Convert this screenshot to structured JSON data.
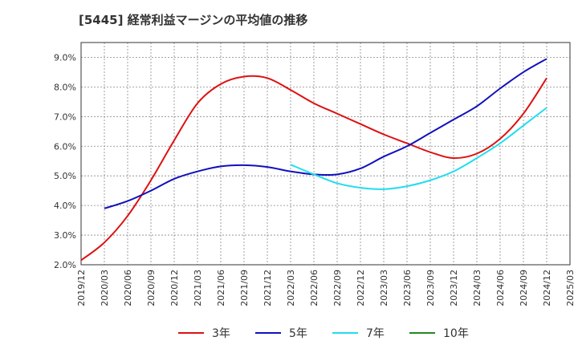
{
  "chart_data": {
    "type": "line",
    "title": "[5445]  経常利益マージンの平均値の推移",
    "xlabel": "",
    "ylabel": "",
    "x_ticks": [
      "2019/12",
      "2020/03",
      "2020/06",
      "2020/09",
      "2020/12",
      "2021/03",
      "2021/06",
      "2021/09",
      "2021/12",
      "2022/03",
      "2022/06",
      "2022/09",
      "2022/12",
      "2023/03",
      "2023/06",
      "2023/09",
      "2023/12",
      "2024/03",
      "2024/06",
      "2024/09",
      "2024/12",
      "2025/03"
    ],
    "y_ticks": [
      "2.0%",
      "3.0%",
      "4.0%",
      "5.0%",
      "6.0%",
      "7.0%",
      "8.0%",
      "9.0%"
    ],
    "ylim": [
      2.0,
      9.5
    ],
    "grid": true,
    "legend_position": "bottom",
    "series": [
      {
        "name": "3年",
        "color": "#dd1111",
        "points": [
          [
            "2019/12",
            2.15
          ],
          [
            "2020/03",
            2.75
          ],
          [
            "2020/06",
            3.65
          ],
          [
            "2020/09",
            4.85
          ],
          [
            "2020/12",
            6.2
          ],
          [
            "2021/03",
            7.45
          ],
          [
            "2021/06",
            8.1
          ],
          [
            "2021/09",
            8.35
          ],
          [
            "2021/12",
            8.3
          ],
          [
            "2022/03",
            7.9
          ],
          [
            "2022/06",
            7.45
          ],
          [
            "2022/09",
            7.1
          ],
          [
            "2022/12",
            6.75
          ],
          [
            "2023/03",
            6.4
          ],
          [
            "2023/06",
            6.1
          ],
          [
            "2023/09",
            5.8
          ],
          [
            "2023/12",
            5.6
          ],
          [
            "2024/03",
            5.75
          ],
          [
            "2024/06",
            6.25
          ],
          [
            "2024/09",
            7.1
          ],
          [
            "2024/12",
            8.3
          ]
        ]
      },
      {
        "name": "5年",
        "color": "#1111bb",
        "points": [
          [
            "2020/03",
            3.9
          ],
          [
            "2020/06",
            4.15
          ],
          [
            "2020/09",
            4.5
          ],
          [
            "2020/12",
            4.9
          ],
          [
            "2021/03",
            5.15
          ],
          [
            "2021/06",
            5.32
          ],
          [
            "2021/09",
            5.36
          ],
          [
            "2021/12",
            5.3
          ],
          [
            "2022/03",
            5.15
          ],
          [
            "2022/06",
            5.05
          ],
          [
            "2022/09",
            5.05
          ],
          [
            "2022/12",
            5.25
          ],
          [
            "2023/03",
            5.65
          ],
          [
            "2023/06",
            6.0
          ],
          [
            "2023/09",
            6.45
          ],
          [
            "2023/12",
            6.9
          ],
          [
            "2024/03",
            7.35
          ],
          [
            "2024/06",
            7.95
          ],
          [
            "2024/09",
            8.5
          ],
          [
            "2024/12",
            8.95
          ]
        ]
      },
      {
        "name": "7年",
        "color": "#22ddee",
        "points": [
          [
            "2022/03",
            5.38
          ],
          [
            "2022/06",
            5.05
          ],
          [
            "2022/09",
            4.75
          ],
          [
            "2022/12",
            4.6
          ],
          [
            "2023/03",
            4.55
          ],
          [
            "2023/06",
            4.65
          ],
          [
            "2023/09",
            4.85
          ],
          [
            "2023/12",
            5.15
          ],
          [
            "2024/03",
            5.6
          ],
          [
            "2024/06",
            6.1
          ],
          [
            "2024/09",
            6.7
          ],
          [
            "2024/12",
            7.3
          ]
        ]
      },
      {
        "name": "10年",
        "color": "#228822",
        "points": []
      }
    ]
  }
}
